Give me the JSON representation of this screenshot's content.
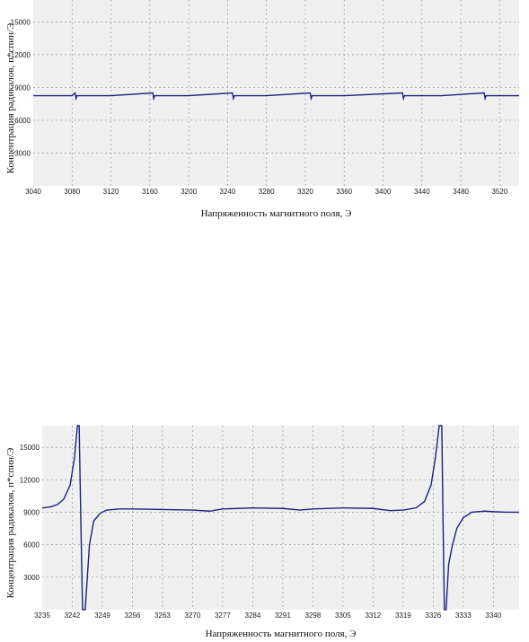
{
  "chart_data": [
    {
      "type": "line",
      "xlabel": "Напряженность магнитного поля, Э",
      "ylabel": "Концентрация радикалов, п*спин/Э",
      "xlim": [
        3040,
        3540
      ],
      "ylim": [
        0,
        17000
      ],
      "x_ticks": [
        3040,
        3080,
        3120,
        3160,
        3200,
        3240,
        3280,
        3320,
        3360,
        3400,
        3440,
        3480,
        3520
      ],
      "y_ticks": [
        3000,
        6000,
        9000,
        12000,
        15000
      ],
      "grid": true,
      "background": "#f0f0f0",
      "line_color": "#1a237e",
      "series": [
        {
          "x": [
            3040,
            3080,
            3083,
            3084,
            3085,
            3120,
            3163,
            3164,
            3165,
            3200,
            3245,
            3246,
            3247,
            3280,
            3325,
            3326,
            3327,
            3360,
            3420,
            3421,
            3422,
            3460,
            3504,
            3505,
            3506,
            3540
          ],
          "values": [
            8250,
            8250,
            8500,
            8000,
            8250,
            8250,
            8500,
            8000,
            8250,
            8250,
            8500,
            8000,
            8250,
            8250,
            8500,
            8000,
            8250,
            8250,
            8500,
            8000,
            8250,
            8250,
            8500,
            8000,
            8250,
            8250
          ]
        }
      ]
    },
    {
      "type": "line",
      "xlabel": "Напряженность магнитного поля, Э",
      "ylabel": "Концентрация радикалов, п*спин/Э",
      "xlim": [
        3235,
        3346
      ],
      "ylim": [
        0,
        17000
      ],
      "x_ticks": [
        3235,
        3242,
        3249,
        3256,
        3263,
        3270,
        3277,
        3284,
        3291,
        3298,
        3305,
        3312,
        3319,
        3326,
        3333,
        3340
      ],
      "y_ticks": [
        3000,
        6000,
        9000,
        12000,
        15000
      ],
      "grid": true,
      "background": "#f0f0f0",
      "line_color": "#1a237e",
      "series": [
        {
          "x": [
            3235,
            3237,
            3238.5,
            3240,
            3241.5,
            3242.5,
            3243.2,
            3243.6,
            3244.0,
            3244.4,
            3245.0,
            3246.0,
            3247.0,
            3248.5,
            3250,
            3253,
            3256,
            3263,
            3270,
            3274,
            3277,
            3284,
            3291,
            3295,
            3298,
            3305,
            3312,
            3316,
            3319,
            3322,
            3324,
            3325.5,
            3326.5,
            3327.4,
            3328.0,
            3328.3,
            3328.6,
            3329.0,
            3329.6,
            3330.5,
            3331.5,
            3333,
            3335,
            3338,
            3340,
            3343,
            3346
          ],
          "values": [
            9400,
            9500,
            9700,
            10200,
            11500,
            14000,
            17000,
            17000,
            8000,
            0,
            0,
            6000,
            8200,
            8900,
            9200,
            9300,
            9300,
            9250,
            9200,
            9100,
            9300,
            9400,
            9350,
            9200,
            9300,
            9400,
            9350,
            9150,
            9200,
            9400,
            10000,
            11500,
            14000,
            17000,
            17000,
            8000,
            0,
            0,
            4200,
            6000,
            7500,
            8500,
            9000,
            9100,
            9050,
            9000,
            9000
          ]
        }
      ]
    }
  ]
}
